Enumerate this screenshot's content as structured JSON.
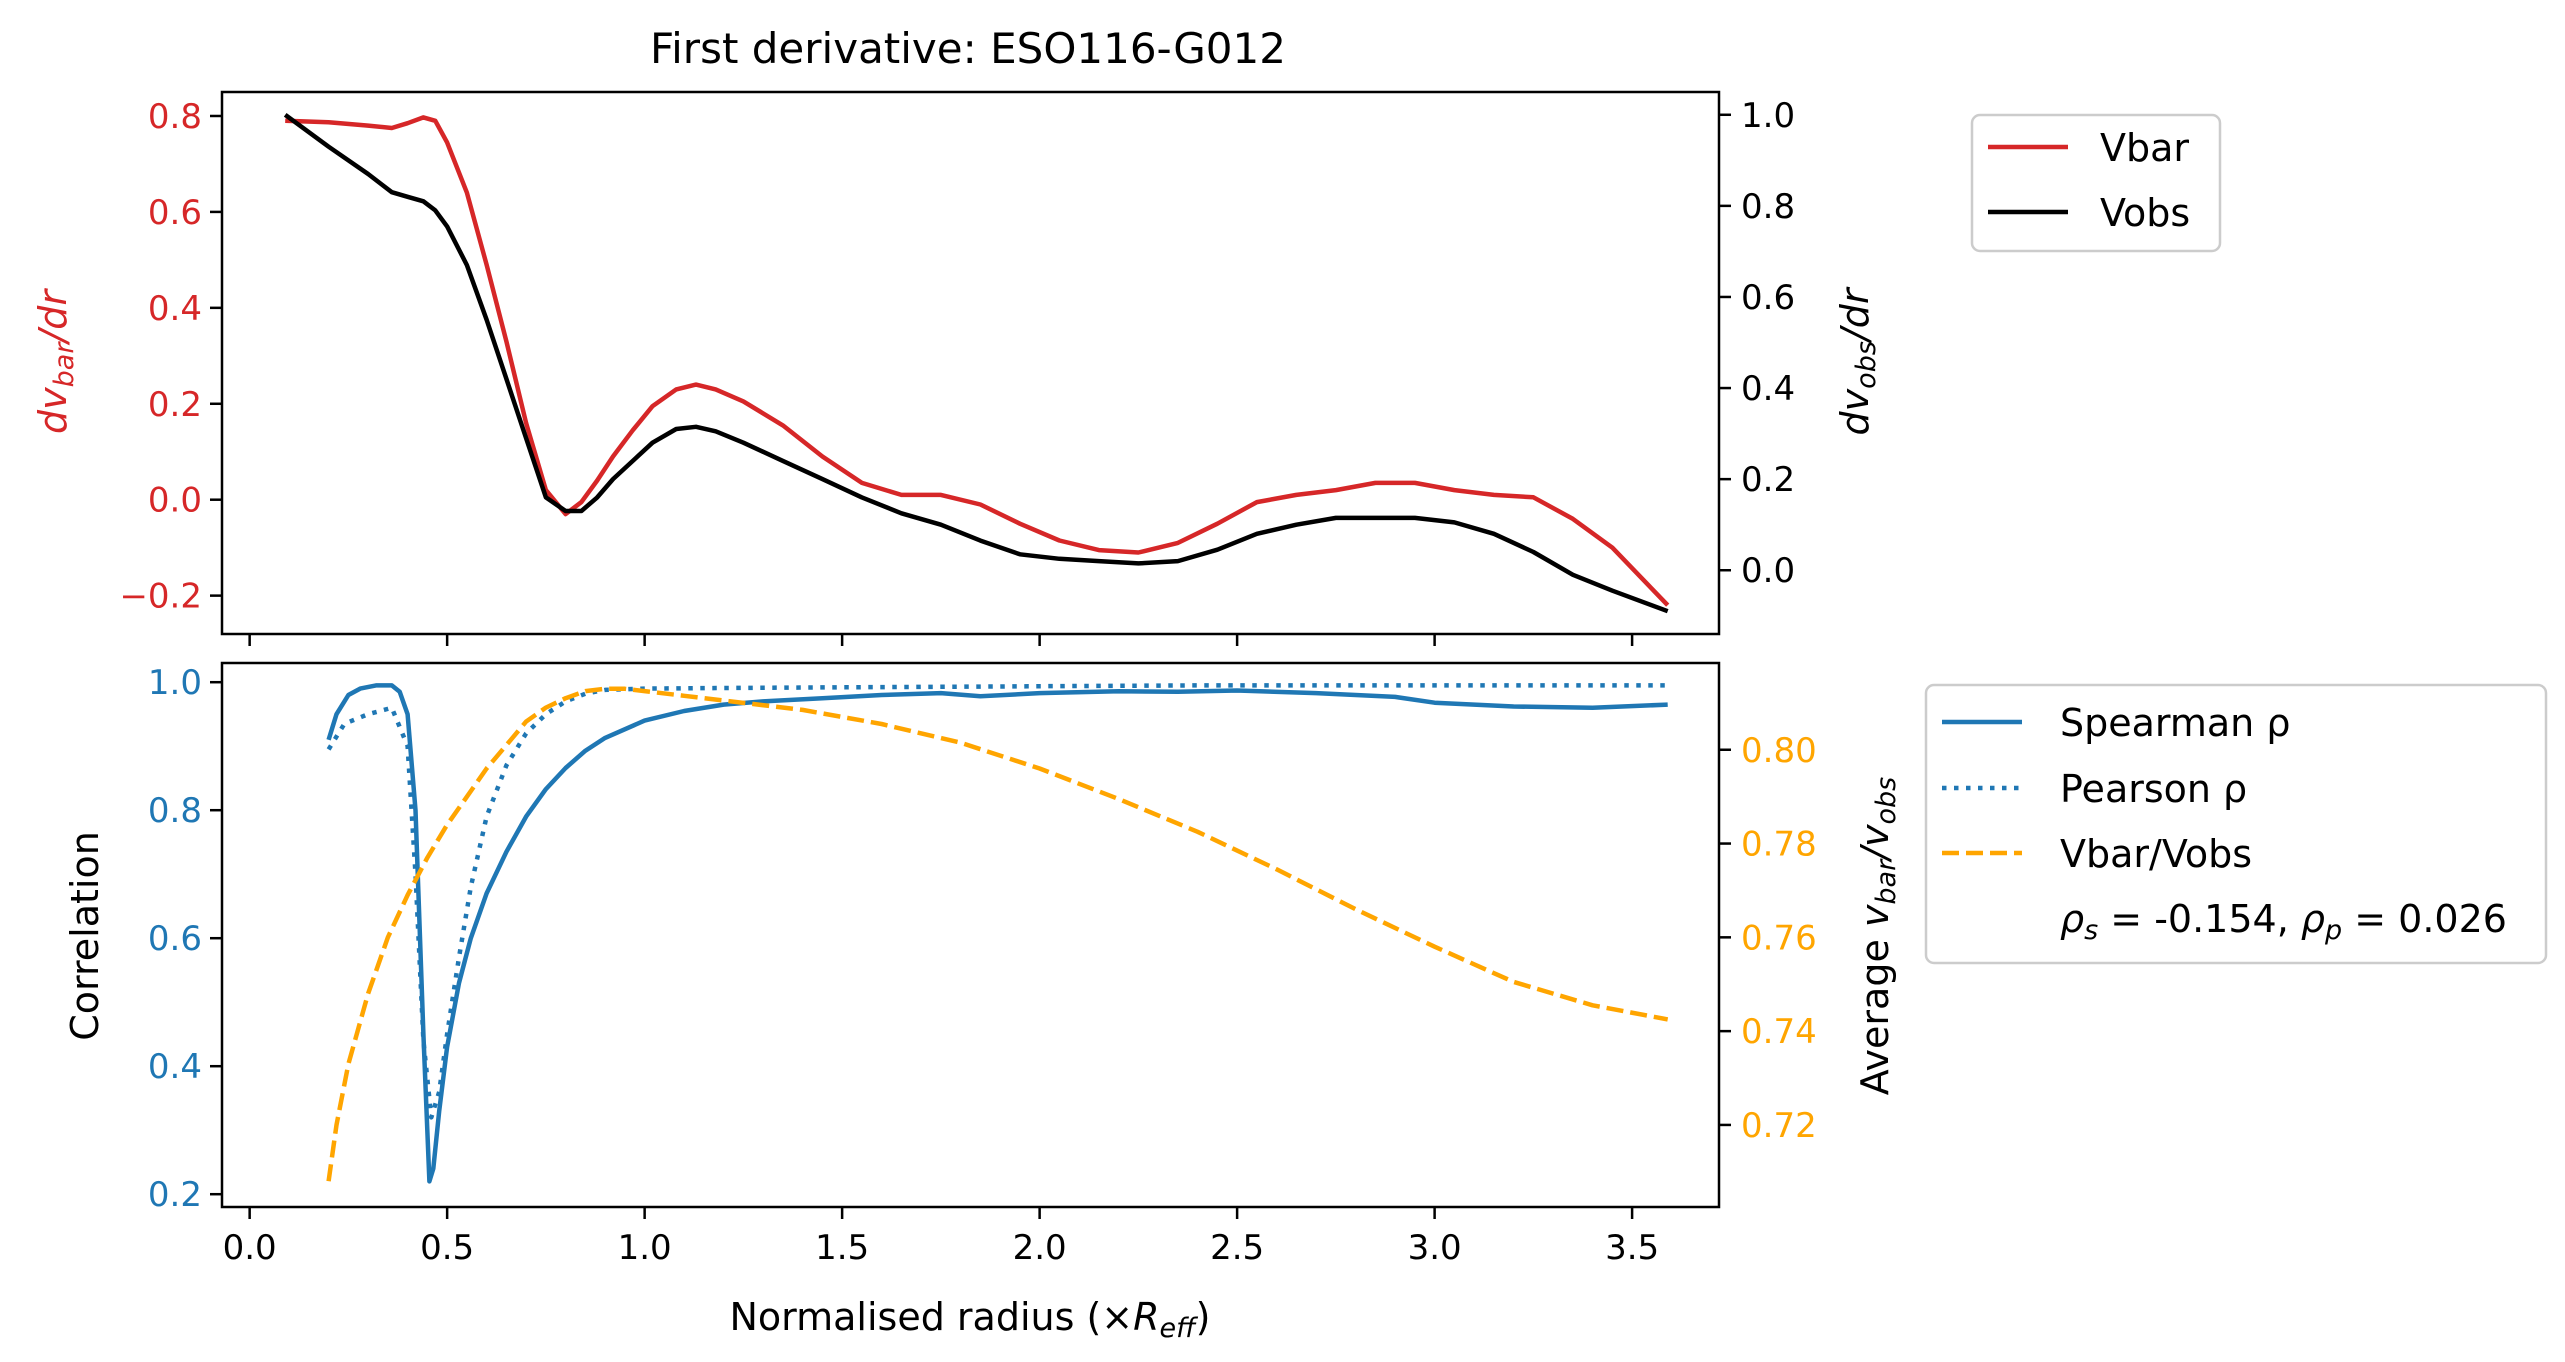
{
  "chart_data": [
    {
      "type": "line",
      "title": "First derivative: ESO116-G012",
      "xlim": [
        -0.07,
        3.72
      ],
      "ylim_left": [
        -0.28,
        0.85
      ],
      "ylim_right": [
        -0.14,
        1.05
      ],
      "ylabel_left": "dv_bar/dr",
      "ylabel_right": "dv_obs/dr",
      "xticks": [
        0.0,
        0.5,
        1.0,
        1.5,
        2.0,
        2.5,
        3.0,
        3.5
      ],
      "xtick_labels_visible": false,
      "yticks_left": [
        -0.2,
        0.0,
        0.2,
        0.4,
        0.6,
        0.8
      ],
      "yticks_right": [
        0.0,
        0.2,
        0.4,
        0.6,
        0.8,
        1.0
      ],
      "legend": {
        "position": "outside-right",
        "entries": [
          "Vbar",
          "Vobs"
        ]
      },
      "series": [
        {
          "name": "Vbar",
          "axis": "left",
          "color": "#d62728",
          "style": "solid",
          "x": [
            0.09,
            0.2,
            0.3,
            0.36,
            0.4,
            0.44,
            0.47,
            0.5,
            0.55,
            0.6,
            0.65,
            0.7,
            0.75,
            0.8,
            0.84,
            0.88,
            0.92,
            0.97,
            1.02,
            1.08,
            1.13,
            1.18,
            1.25,
            1.35,
            1.45,
            1.55,
            1.65,
            1.75,
            1.85,
            1.95,
            2.05,
            2.15,
            2.25,
            2.35,
            2.45,
            2.55,
            2.65,
            2.75,
            2.85,
            2.95,
            3.05,
            3.15,
            3.25,
            3.35,
            3.45,
            3.59
          ],
          "y": [
            0.79,
            0.787,
            0.78,
            0.775,
            0.785,
            0.797,
            0.79,
            0.745,
            0.64,
            0.49,
            0.33,
            0.16,
            0.02,
            -0.03,
            -0.005,
            0.04,
            0.09,
            0.145,
            0.195,
            0.23,
            0.24,
            0.23,
            0.205,
            0.155,
            0.09,
            0.035,
            0.01,
            0.01,
            -0.01,
            -0.05,
            -0.085,
            -0.105,
            -0.11,
            -0.09,
            -0.05,
            -0.005,
            0.01,
            0.02,
            0.035,
            0.035,
            0.02,
            0.01,
            0.005,
            -0.04,
            -0.1,
            -0.22
          ]
        },
        {
          "name": "Vobs",
          "axis": "right",
          "color": "#000000",
          "style": "solid",
          "x": [
            0.09,
            0.2,
            0.3,
            0.36,
            0.4,
            0.44,
            0.47,
            0.5,
            0.55,
            0.6,
            0.65,
            0.7,
            0.75,
            0.8,
            0.84,
            0.88,
            0.92,
            0.97,
            1.02,
            1.08,
            1.13,
            1.18,
            1.25,
            1.35,
            1.45,
            1.55,
            1.65,
            1.75,
            1.85,
            1.95,
            2.05,
            2.15,
            2.25,
            2.35,
            2.45,
            2.55,
            2.65,
            2.75,
            2.85,
            2.95,
            3.05,
            3.15,
            3.25,
            3.35,
            3.45,
            3.59
          ],
          "y": [
            1.0,
            0.93,
            0.87,
            0.83,
            0.82,
            0.81,
            0.79,
            0.755,
            0.67,
            0.55,
            0.42,
            0.29,
            0.16,
            0.13,
            0.13,
            0.16,
            0.2,
            0.24,
            0.28,
            0.31,
            0.315,
            0.305,
            0.28,
            0.24,
            0.2,
            0.16,
            0.125,
            0.1,
            0.065,
            0.035,
            0.025,
            0.02,
            0.015,
            0.02,
            0.045,
            0.08,
            0.1,
            0.115,
            0.115,
            0.115,
            0.105,
            0.08,
            0.04,
            -0.01,
            -0.045,
            -0.09
          ]
        }
      ]
    },
    {
      "type": "line",
      "title": "",
      "xlabel": "Normalised radius (×R_eff)",
      "xlim": [
        -0.07,
        3.72
      ],
      "ylim_left": [
        0.18,
        1.03
      ],
      "ylim_right": [
        0.7025,
        0.8185
      ],
      "ylabel_left": "Correlation",
      "ylabel_right": "Average v_bar/v_obs",
      "xticks": [
        0.0,
        0.5,
        1.0,
        1.5,
        2.0,
        2.5,
        3.0,
        3.5
      ],
      "yticks_left": [
        0.2,
        0.4,
        0.6,
        0.8,
        1.0
      ],
      "yticks_right": [
        0.72,
        0.74,
        0.76,
        0.78,
        0.8
      ],
      "legend": {
        "position": "outside-right",
        "entries": [
          "Spearman ρ",
          "Pearson ρ",
          "Vbar/Vobs"
        ],
        "annotation": {
          "rho_s": "-0.154",
          "rho_p": "0.026"
        }
      },
      "series": [
        {
          "name": "Spearman ρ",
          "axis": "left",
          "color": "#1f77b4",
          "style": "solid",
          "x": [
            0.2,
            0.22,
            0.25,
            0.28,
            0.32,
            0.36,
            0.38,
            0.4,
            0.42,
            0.44,
            0.455,
            0.465,
            0.48,
            0.5,
            0.53,
            0.56,
            0.6,
            0.65,
            0.7,
            0.75,
            0.8,
            0.85,
            0.9,
            1.0,
            1.1,
            1.2,
            1.3,
            1.45,
            1.6,
            1.75,
            1.85,
            2.0,
            2.2,
            2.35,
            2.5,
            2.7,
            2.9,
            3.0,
            3.2,
            3.4,
            3.59
          ],
          "y": [
            0.91,
            0.95,
            0.98,
            0.99,
            0.995,
            0.995,
            0.985,
            0.95,
            0.8,
            0.45,
            0.22,
            0.24,
            0.33,
            0.43,
            0.53,
            0.6,
            0.67,
            0.735,
            0.79,
            0.833,
            0.866,
            0.893,
            0.913,
            0.94,
            0.955,
            0.965,
            0.97,
            0.975,
            0.98,
            0.983,
            0.978,
            0.983,
            0.986,
            0.985,
            0.987,
            0.983,
            0.977,
            0.968,
            0.962,
            0.96,
            0.965
          ]
        },
        {
          "name": "Pearson ρ",
          "axis": "left",
          "color": "#1f77b4",
          "style": "dotted",
          "x": [
            0.2,
            0.24,
            0.3,
            0.36,
            0.4,
            0.42,
            0.44,
            0.46,
            0.48,
            0.5,
            0.53,
            0.56,
            0.6,
            0.65,
            0.7,
            0.75,
            0.8,
            0.85,
            0.9,
            1.0,
            1.2,
            1.5,
            1.8,
            2.1,
            2.4,
            2.7,
            3.0,
            3.3,
            3.59
          ],
          "y": [
            0.895,
            0.935,
            0.95,
            0.96,
            0.9,
            0.7,
            0.44,
            0.32,
            0.36,
            0.45,
            0.57,
            0.68,
            0.79,
            0.87,
            0.92,
            0.95,
            0.97,
            0.982,
            0.988,
            0.99,
            0.991,
            0.992,
            0.993,
            0.994,
            0.995,
            0.995,
            0.995,
            0.995,
            0.995
          ]
        },
        {
          "name": "Vbar/Vobs",
          "axis": "right",
          "color": "#ffa500",
          "style": "dashed",
          "x": [
            0.2,
            0.22,
            0.25,
            0.3,
            0.35,
            0.4,
            0.45,
            0.5,
            0.55,
            0.6,
            0.65,
            0.7,
            0.75,
            0.8,
            0.85,
            0.9,
            0.95,
            1.0,
            1.1,
            1.2,
            1.4,
            1.6,
            1.8,
            2.0,
            2.2,
            2.4,
            2.6,
            2.8,
            3.0,
            3.2,
            3.4,
            3.59
          ],
          "y": [
            0.708,
            0.72,
            0.733,
            0.748,
            0.76,
            0.769,
            0.777,
            0.784,
            0.79,
            0.796,
            0.801,
            0.806,
            0.809,
            0.811,
            0.8125,
            0.813,
            0.813,
            0.8125,
            0.8115,
            0.8105,
            0.8085,
            0.8055,
            0.8015,
            0.796,
            0.7895,
            0.7825,
            0.7745,
            0.766,
            0.758,
            0.7505,
            0.7455,
            0.7425
          ]
        }
      ]
    }
  ]
}
